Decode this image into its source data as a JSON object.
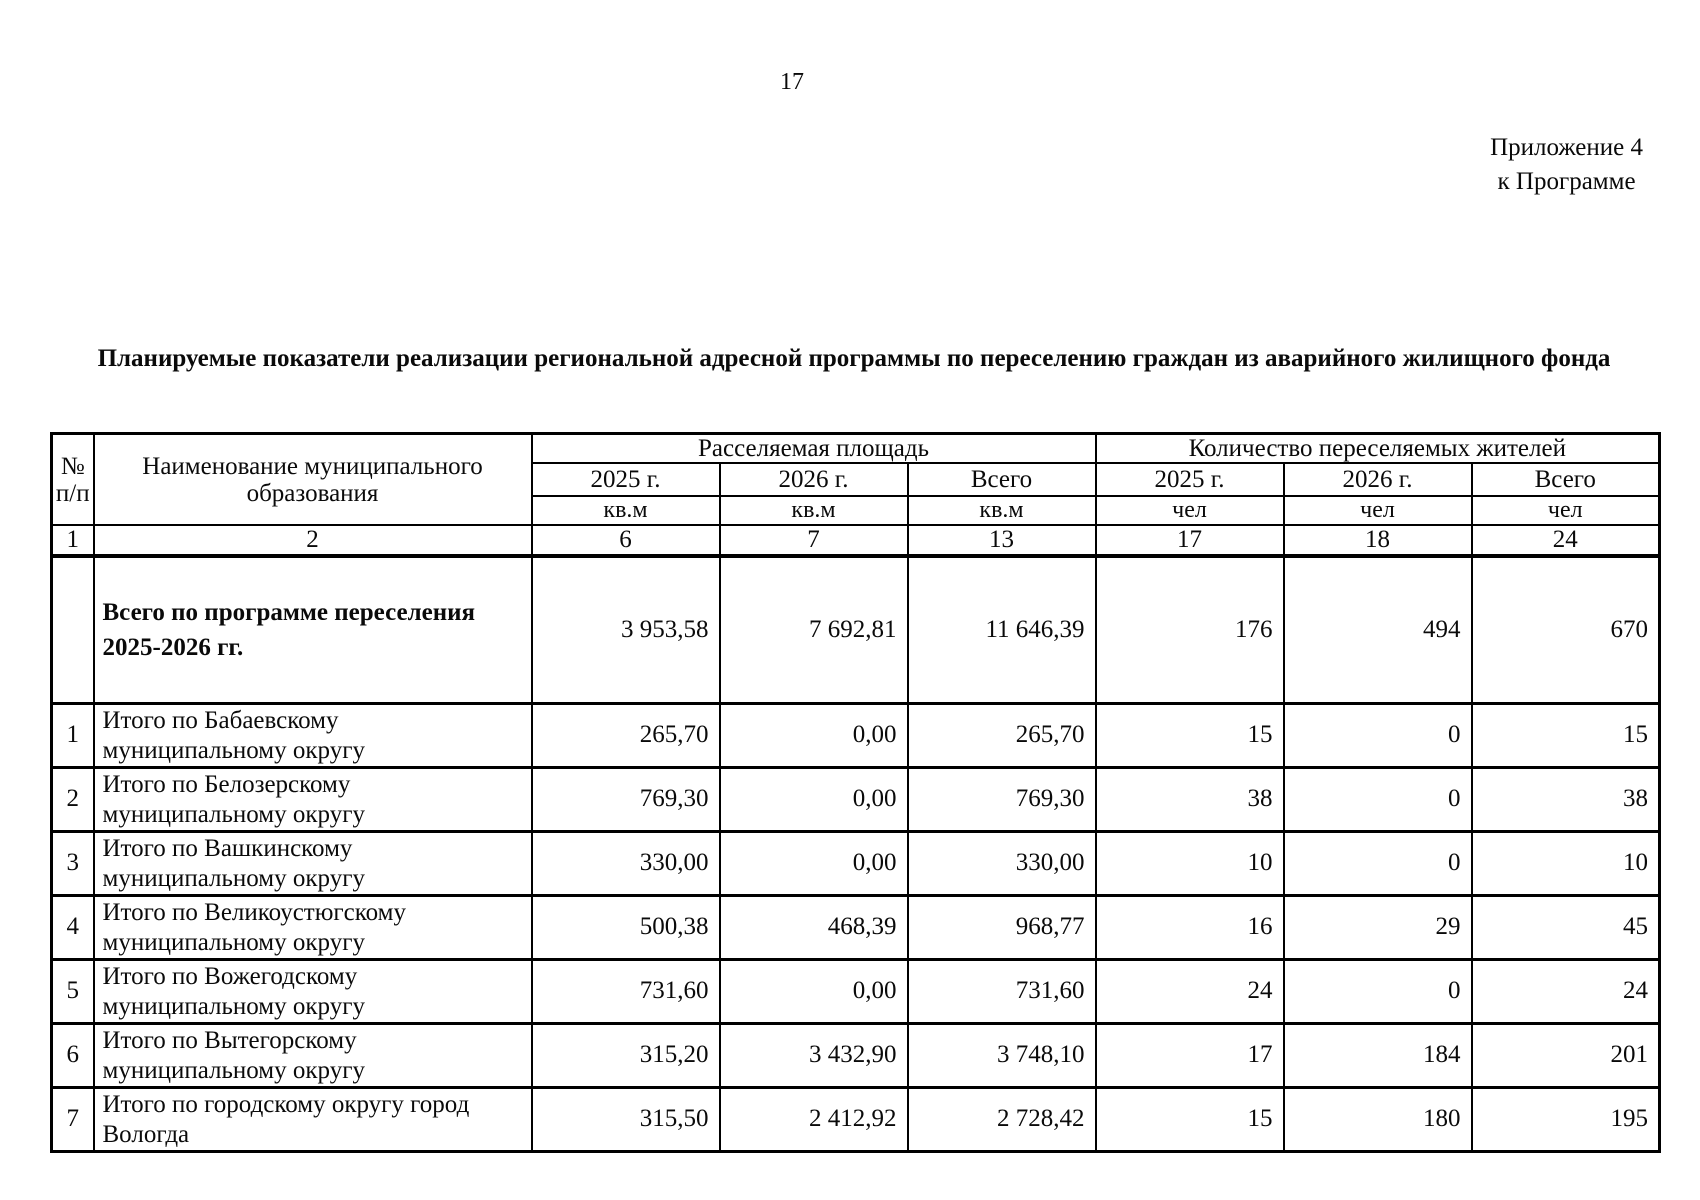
{
  "page": {
    "number": "17",
    "appendix_line1": "Приложение 4",
    "appendix_line2": "к Программе",
    "title": "Планируемые показатели реализации региональной адресной программы по переселению граждан из аварийного жилищного фонда"
  },
  "table": {
    "col_headers": {
      "num": "№\nп/п",
      "name": "Наименование муниципального образования",
      "group_area": "Расселяемая площадь",
      "group_people": "Количество переселяемых жителей",
      "years": [
        "2025 г.",
        "2026 г.",
        "Всего",
        "2025 г.",
        "2026 г.",
        "Всего"
      ],
      "units": [
        "кв.м",
        "кв.м",
        "кв.м",
        "чел",
        "чел",
        "чел"
      ],
      "col_numbers": [
        "1",
        "2",
        "6",
        "7",
        "13",
        "17",
        "18",
        "24"
      ]
    },
    "rows": [
      {
        "num": "",
        "name": "Всего по программе переселения\n2025-2026 гг.",
        "bold": true,
        "values": [
          "3 953,58",
          "7 692,81",
          "11 646,39",
          "176",
          "494",
          "670"
        ]
      },
      {
        "num": "1",
        "name": "Итого по Бабаевскому\nмуниципальному округу",
        "values": [
          "265,70",
          "0,00",
          "265,70",
          "15",
          "0",
          "15"
        ]
      },
      {
        "num": "2",
        "name": "Итого по Белозерскому\nмуниципальному округу",
        "values": [
          "769,30",
          "0,00",
          "769,30",
          "38",
          "0",
          "38"
        ]
      },
      {
        "num": "3",
        "name": "Итого по Вашкинскому\nмуниципальному округу",
        "values": [
          "330,00",
          "0,00",
          "330,00",
          "10",
          "0",
          "10"
        ]
      },
      {
        "num": "4",
        "name": "Итого по Великоустюгскому\nмуниципальному округу",
        "values": [
          "500,38",
          "468,39",
          "968,77",
          "16",
          "29",
          "45"
        ]
      },
      {
        "num": "5",
        "name": "Итого по Вожегодскому\nмуниципальному округу",
        "values": [
          "731,60",
          "0,00",
          "731,60",
          "24",
          "0",
          "24"
        ]
      },
      {
        "num": "6",
        "name": "Итого по Вытегорскому\nмуниципальному округу",
        "values": [
          "315,20",
          "3 432,90",
          "3 748,10",
          "17",
          "184",
          "201"
        ]
      },
      {
        "num": "7",
        "name": "Итого по городскому округу город\nВологда",
        "values": [
          "315,50",
          "2 412,92",
          "2 728,42",
          "15",
          "180",
          "195"
        ]
      }
    ]
  }
}
